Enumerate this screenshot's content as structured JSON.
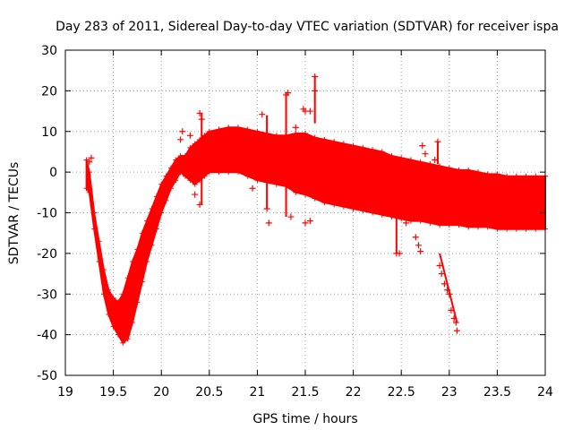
{
  "chart_data": {
    "type": "scatter",
    "title": "Day 283 of 2011, Sidereal Day-to-day VTEC variation (SDTVAR) for receiver ispa",
    "xlabel": "GPS time / hours",
    "ylabel": "SDTVAR / TECUs",
    "xlim": [
      19,
      24
    ],
    "ylim": [
      -50,
      30
    ],
    "xticks": [
      19,
      19.5,
      20,
      20.5,
      21,
      21.5,
      22,
      22.5,
      23,
      23.5,
      24
    ],
    "xtick_labels": [
      "19",
      "19.5",
      "20",
      "20.5",
      "21",
      "21.5",
      "22",
      "22.5",
      "23",
      "23.5",
      "24"
    ],
    "yticks": [
      -50,
      -40,
      -30,
      -20,
      -10,
      0,
      10,
      20,
      30
    ],
    "ytick_labels": [
      "-50",
      "-40",
      "-30",
      "-20",
      "-10",
      "0",
      "10",
      "20",
      "30"
    ],
    "grid": true,
    "marker": "plus",
    "color": "#ff0000",
    "series": [
      {
        "name": "SDTVAR",
        "band_x": [
          19.22,
          19.25,
          19.3,
          19.35,
          19.4,
          19.45,
          19.5,
          19.55,
          19.6,
          19.65,
          19.7,
          19.75,
          19.8,
          19.85,
          19.9,
          19.95,
          20.0,
          20.05,
          20.1,
          20.15,
          20.2,
          20.25,
          20.3,
          20.35,
          20.4,
          20.45,
          20.5,
          20.6,
          20.7,
          20.8,
          20.9,
          21.0,
          21.1,
          21.2,
          21.3,
          21.4,
          21.5,
          21.6,
          21.7,
          21.8,
          21.9,
          22.0,
          22.1,
          22.2,
          22.3,
          22.4,
          22.5,
          22.6,
          22.7,
          22.8,
          22.9,
          23.0,
          23.1,
          23.2,
          23.3,
          23.4,
          23.5,
          23.6,
          23.7,
          23.8,
          23.9,
          24.0
        ],
        "band_upper": [
          3,
          0,
          -10,
          -17,
          -24,
          -29,
          -31,
          -32,
          -30,
          -26,
          -22,
          -19,
          -15,
          -12,
          -9,
          -6,
          -3,
          -1,
          1,
          3,
          4,
          4,
          6,
          7,
          8,
          9,
          10,
          10.5,
          11,
          11,
          10.5,
          10,
          9.5,
          9,
          9,
          9.5,
          9.5,
          8.5,
          8,
          7.5,
          7,
          6.5,
          6,
          5.5,
          5,
          4,
          3.5,
          3,
          2.5,
          2,
          1.5,
          1,
          0.5,
          0.5,
          0,
          -0.5,
          -0.5,
          -1,
          -1,
          -1,
          -1,
          -1
        ],
        "band_lower": [
          -4,
          -5,
          -14,
          -22,
          -30,
          -35,
          -38,
          -40,
          -42,
          -41,
          -37,
          -32,
          -27,
          -22,
          -18,
          -14,
          -10,
          -7,
          -4,
          -2,
          0,
          -1,
          -2,
          -3,
          -2,
          -1,
          0,
          0,
          0,
          0,
          -1,
          -2,
          -2.5,
          -3,
          -3.5,
          -5,
          -5.5,
          -6.5,
          -7.5,
          -8,
          -8.5,
          -9,
          -9.5,
          -10,
          -10.5,
          -11,
          -11.5,
          -12,
          -12,
          -12.5,
          -13,
          -13,
          -13,
          -13.5,
          -13.5,
          -13.5,
          -14,
          -14,
          -14,
          -14,
          -14,
          -14
        ],
        "extra_points": [
          [
            19.25,
            2.5
          ],
          [
            19.27,
            3.5
          ],
          [
            20.2,
            8
          ],
          [
            20.22,
            10
          ],
          [
            20.3,
            9
          ],
          [
            20.4,
            14.5
          ],
          [
            20.42,
            13
          ],
          [
            20.4,
            -8
          ],
          [
            20.35,
            -5.5
          ],
          [
            20.95,
            -4
          ],
          [
            21.05,
            14.2
          ],
          [
            21.1,
            -9
          ],
          [
            21.12,
            -12.5
          ],
          [
            21.3,
            19
          ],
          [
            21.32,
            19.5
          ],
          [
            21.35,
            -11
          ],
          [
            21.4,
            11
          ],
          [
            21.48,
            15.5
          ],
          [
            21.5,
            15
          ],
          [
            21.55,
            15
          ],
          [
            21.6,
            23.5
          ],
          [
            21.6,
            20
          ],
          [
            21.5,
            -12.5
          ],
          [
            21.55,
            -12
          ],
          [
            22.45,
            -20
          ],
          [
            22.48,
            -20
          ],
          [
            22.55,
            -12.5
          ],
          [
            22.65,
            -16
          ],
          [
            22.68,
            -18
          ],
          [
            22.7,
            -19.5
          ],
          [
            22.72,
            6.5
          ],
          [
            22.75,
            4.5
          ],
          [
            22.85,
            3
          ],
          [
            22.88,
            7.5
          ],
          [
            22.9,
            -23
          ],
          [
            22.92,
            -25
          ],
          [
            22.95,
            -27.5
          ],
          [
            22.98,
            -29
          ],
          [
            23.0,
            -30
          ],
          [
            23.02,
            -34
          ],
          [
            23.05,
            -36
          ],
          [
            23.07,
            -37
          ],
          [
            23.08,
            -39
          ]
        ],
        "extra_segments": [
          [
            20.42,
            14.5,
            20.42,
            -8
          ],
          [
            21.1,
            14,
            21.1,
            -9
          ],
          [
            21.3,
            19.5,
            21.3,
            -11
          ],
          [
            21.6,
            23.5,
            21.6,
            12
          ],
          [
            22.45,
            -10,
            22.45,
            -20
          ],
          [
            22.88,
            7.5,
            22.88,
            2
          ],
          [
            22.9,
            -20,
            23.08,
            -37
          ]
        ]
      }
    ]
  }
}
